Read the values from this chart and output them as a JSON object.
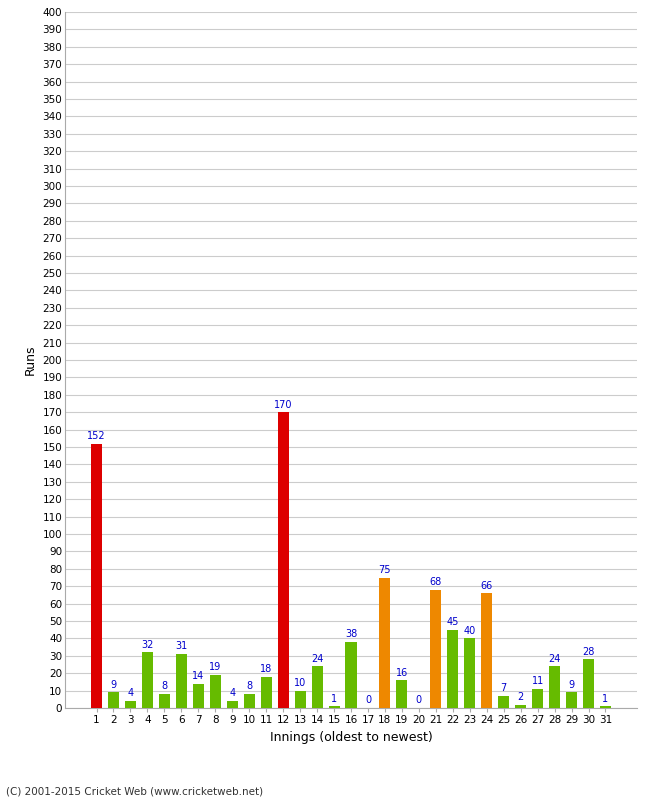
{
  "xlabel": "Innings (oldest to newest)",
  "ylabel": "Runs",
  "footer": "(C) 2001-2015 Cricket Web (www.cricketweb.net)",
  "ylim": [
    0,
    400
  ],
  "yticks": [
    0,
    10,
    20,
    30,
    40,
    50,
    60,
    70,
    80,
    90,
    100,
    110,
    120,
    130,
    140,
    150,
    160,
    170,
    180,
    190,
    200,
    210,
    220,
    230,
    240,
    250,
    260,
    270,
    280,
    290,
    300,
    310,
    320,
    330,
    340,
    350,
    360,
    370,
    380,
    390,
    400
  ],
  "innings": [
    1,
    2,
    3,
    4,
    5,
    6,
    7,
    8,
    9,
    10,
    11,
    12,
    13,
    14,
    15,
    16,
    17,
    18,
    19,
    20,
    21,
    22,
    23,
    24,
    25,
    26,
    27,
    28,
    29,
    30,
    31
  ],
  "values": [
    152,
    9,
    4,
    32,
    8,
    31,
    14,
    19,
    4,
    8,
    18,
    170,
    10,
    24,
    1,
    38,
    0,
    75,
    16,
    0,
    68,
    45,
    40,
    66,
    7,
    2,
    11,
    24,
    9,
    28,
    1
  ],
  "colors": [
    "#dd0000",
    "#66bb00",
    "#66bb00",
    "#66bb00",
    "#66bb00",
    "#66bb00",
    "#66bb00",
    "#66bb00",
    "#66bb00",
    "#66bb00",
    "#66bb00",
    "#dd0000",
    "#66bb00",
    "#66bb00",
    "#66bb00",
    "#66bb00",
    "#66bb00",
    "#ee8800",
    "#66bb00",
    "#66bb00",
    "#ee8800",
    "#66bb00",
    "#66bb00",
    "#ee8800",
    "#66bb00",
    "#66bb00",
    "#66bb00",
    "#66bb00",
    "#66bb00",
    "#66bb00",
    "#66bb00"
  ],
  "bg_color": "#ffffff",
  "grid_color": "#cccccc",
  "label_color": "#0000cc",
  "bar_width": 0.65,
  "figsize": [
    6.5,
    8.0
  ],
  "dpi": 100
}
